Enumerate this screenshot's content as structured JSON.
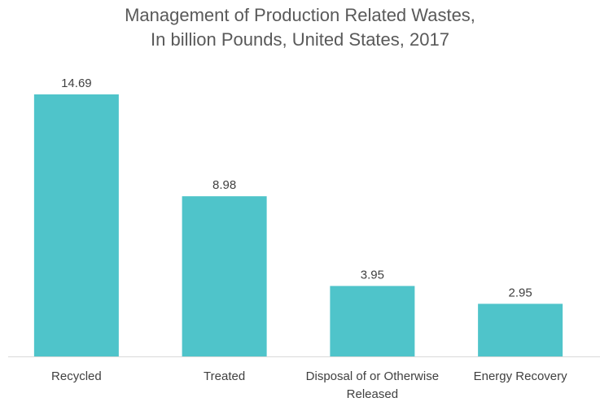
{
  "chart_data": {
    "type": "bar",
    "title_lines": [
      "Management of Production Related Wastes,",
      "In billion Pounds, United States, 2017"
    ],
    "categories": [
      [
        "Recycled"
      ],
      [
        "Treated"
      ],
      [
        "Disposal of or Otherwise",
        "Released"
      ],
      [
        "Energy Recovery"
      ]
    ],
    "values": [
      14.69,
      8.98,
      3.95,
      2.95
    ],
    "value_labels": [
      "14.69",
      "8.98",
      "3.95",
      "2.95"
    ],
    "ylim": [
      0,
      14.69
    ],
    "grid": false,
    "legend": "none",
    "bar_color": "#4fc4ca",
    "axis_color": "#d9d9d9"
  }
}
